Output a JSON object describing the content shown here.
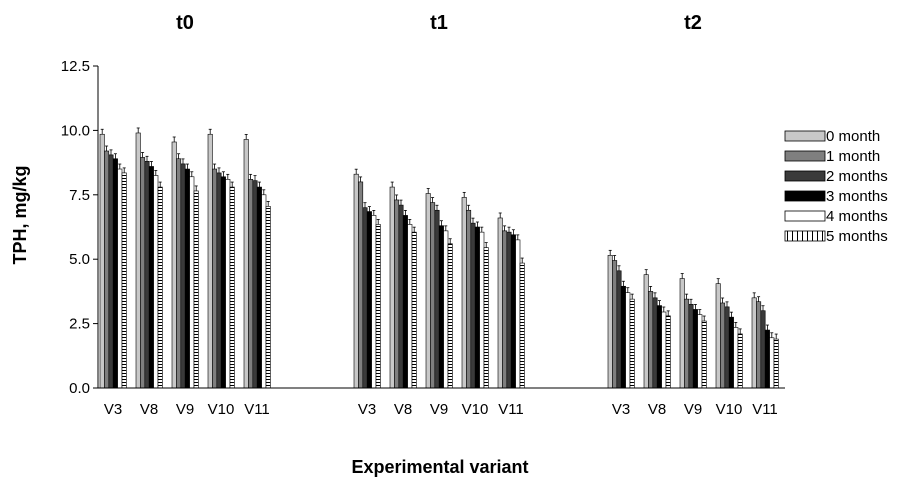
{
  "chart_data": {
    "type": "bar",
    "group_titles": [
      "t0",
      "t1",
      "t2"
    ],
    "categories": [
      "V3",
      "V8",
      "V9",
      "V10",
      "V11"
    ],
    "xlabel": "Experimental variant",
    "ylabel": "TPH, mg/kg",
    "ylim": [
      0,
      12.5
    ],
    "yticks": [
      "0.0",
      "2.5",
      "5.0",
      "7.5",
      "10.0",
      "12.5"
    ],
    "legend_position": "right",
    "series": [
      {
        "name": "0 month",
        "fill": "#c8c8c8",
        "values": [
          [
            9.85,
            9.9,
            9.55,
            9.85,
            9.65
          ],
          [
            8.3,
            7.8,
            7.55,
            7.4,
            6.6
          ],
          [
            5.15,
            4.4,
            4.25,
            4.05,
            3.5
          ]
        ]
      },
      {
        "name": "1 month",
        "fill": "#7f7f7f",
        "values": [
          [
            9.2,
            8.95,
            8.9,
            8.5,
            8.1
          ],
          [
            8.0,
            7.3,
            7.2,
            6.9,
            6.1
          ],
          [
            4.95,
            3.75,
            3.45,
            3.3,
            3.35
          ]
        ]
      },
      {
        "name": "2 months",
        "fill": "#3a3a3a",
        "values": [
          [
            9.05,
            8.8,
            8.7,
            8.35,
            8.05
          ],
          [
            7.0,
            7.1,
            6.9,
            6.4,
            6.05
          ],
          [
            4.55,
            3.5,
            3.25,
            3.15,
            3.0
          ]
        ]
      },
      {
        "name": "3 months",
        "fill": "#000000",
        "values": [
          [
            8.9,
            8.6,
            8.5,
            8.2,
            7.8
          ],
          [
            6.85,
            6.7,
            6.3,
            6.25,
            5.95
          ],
          [
            3.95,
            3.2,
            3.05,
            2.75,
            2.25
          ]
        ]
      },
      {
        "name": "4 months",
        "fill": "#ffffff",
        "values": [
          [
            8.5,
            8.25,
            8.2,
            8.1,
            7.5
          ],
          [
            6.7,
            6.35,
            6.1,
            6.05,
            5.75
          ],
          [
            3.7,
            2.95,
            2.85,
            2.35,
            1.95
          ]
        ]
      },
      {
        "name": "5 months",
        "fill": "hatched",
        "values": [
          [
            8.35,
            7.8,
            7.65,
            7.8,
            7.05
          ],
          [
            6.35,
            6.05,
            5.6,
            5.45,
            4.85
          ],
          [
            3.45,
            2.8,
            2.6,
            2.1,
            1.9
          ]
        ]
      }
    ]
  }
}
